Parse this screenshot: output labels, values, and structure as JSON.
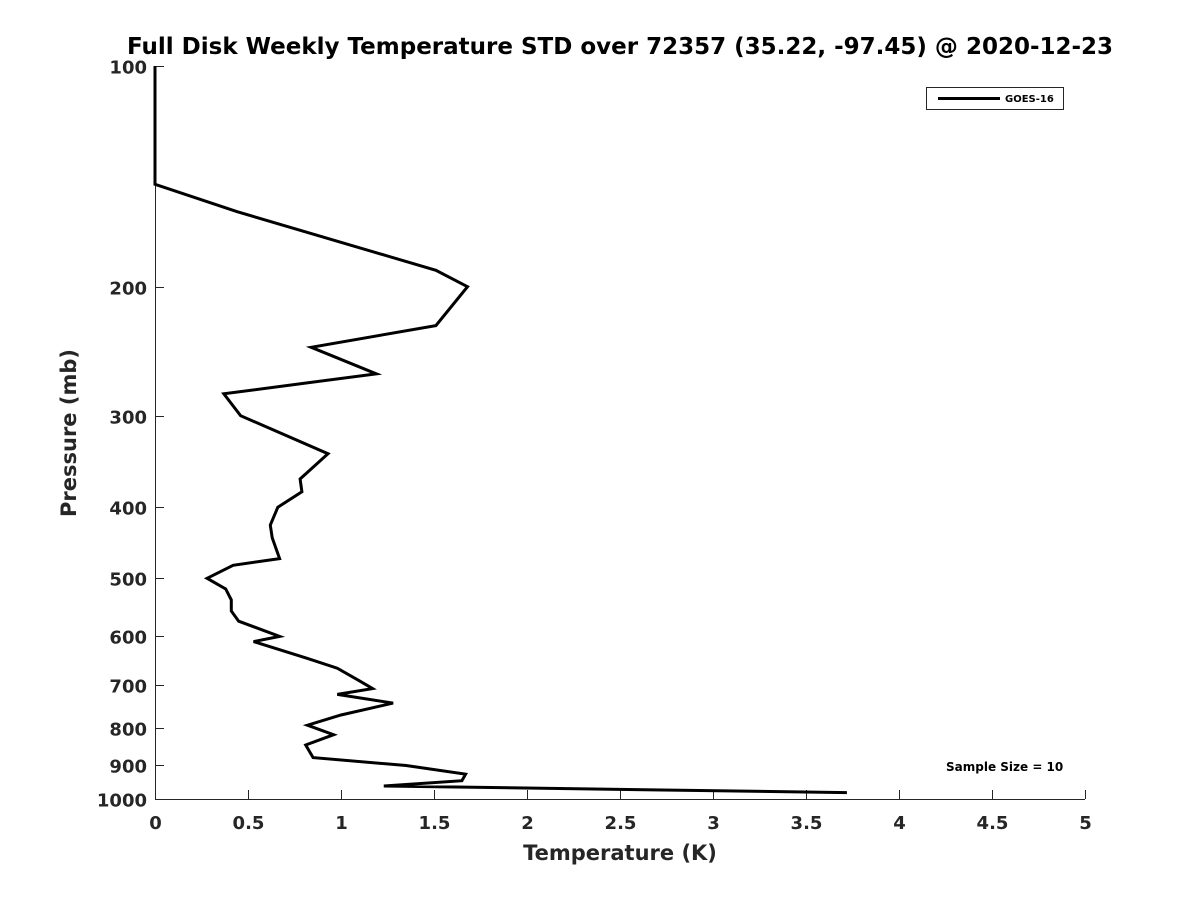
{
  "chart_data": {
    "type": "line",
    "title": "Full Disk Weekly Temperature STD over 72357 (35.22, -97.45) @ 2020-12-23",
    "xlabel": "Temperature (K)",
    "ylabel": "Pressure (mb)",
    "xlim": [
      0,
      5
    ],
    "ylim": [
      100,
      1000
    ],
    "y_scale": "log",
    "y_reversed": true,
    "x_ticks": [
      "0",
      "0.5",
      "1",
      "1.5",
      "2",
      "2.5",
      "3",
      "3.5",
      "4",
      "4.5",
      "5"
    ],
    "y_ticks": [
      "100",
      "200",
      "300",
      "400",
      "500",
      "600",
      "700",
      "800",
      "900",
      "1000"
    ],
    "grid": false,
    "legend_position": "top-right",
    "annotation": "Sample Size = 10",
    "colors": {
      "line": "#000000",
      "axis": "#262626"
    },
    "series": [
      {
        "name": "GOES-16",
        "x": [
          0,
          0,
          0,
          0.44,
          1.51,
          1.68,
          1.51,
          0.84,
          1.19,
          0.37,
          0.46,
          0.93,
          0.78,
          0.79,
          0.66,
          0.62,
          0.63,
          0.67,
          0.42,
          0.28,
          0.38,
          0.41,
          0.41,
          0.45,
          0.67,
          0.53,
          0.82,
          0.98,
          1.1,
          1.17,
          0.98,
          1.28,
          1.0,
          0.82,
          0.96,
          0.81,
          0.85,
          1.35,
          1.67,
          1.65,
          1.23,
          3.72
        ],
        "y": [
          100,
          120,
          145,
          158,
          190,
          200,
          226,
          242,
          263,
          280,
          300,
          338,
          366,
          381,
          400,
          423,
          440,
          470,
          480,
          500,
          517,
          535,
          554,
          572,
          600,
          610,
          643,
          663,
          690,
          707,
          720,
          740,
          768,
          793,
          817,
          844,
          878,
          900,
          925,
          944,
          960,
          980
        ]
      }
    ]
  }
}
